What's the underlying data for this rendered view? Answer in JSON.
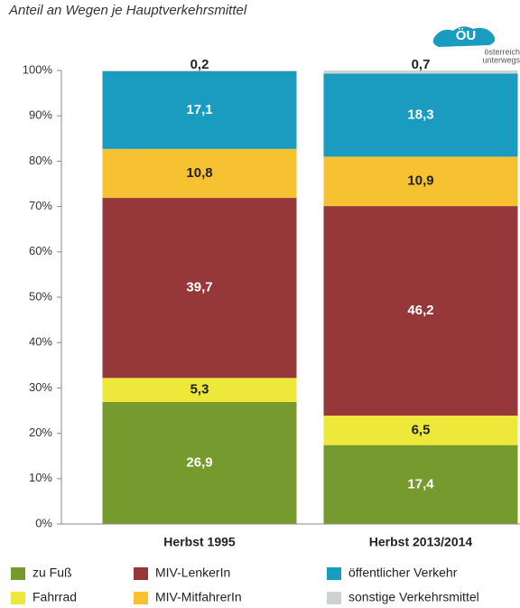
{
  "logo": {
    "mark": "ÖU",
    "line1": "österreich",
    "line2": "unterwegs"
  },
  "chart_data": {
    "type": "stacked_bar",
    "subtitle": "Anteil an Wegen je Hauptverkehrsmittel",
    "categories": [
      "Herbst 1995",
      "Herbst 2013/2014"
    ],
    "series": [
      {
        "name": "zu Fuß",
        "color": "#779a2e",
        "values": [
          26.9,
          17.4
        ],
        "value_labels": [
          "26,9",
          "17,4"
        ]
      },
      {
        "name": "Fahrrad",
        "color": "#ede83a",
        "values": [
          5.3,
          6.5
        ],
        "value_labels": [
          "5,3",
          "6,5"
        ]
      },
      {
        "name": "MIV-LenkerIn",
        "color": "#96383a",
        "values": [
          39.7,
          46.2
        ],
        "value_labels": [
          "39,7",
          "46,2"
        ]
      },
      {
        "name": "MIV-MitfahrerIn",
        "color": "#f6c231",
        "values": [
          10.8,
          10.9
        ],
        "value_labels": [
          "10,8",
          "10,9"
        ]
      },
      {
        "name": "öffentlicher Verkehr",
        "color": "#1a9bc0",
        "values": [
          17.1,
          18.3
        ],
        "value_labels": [
          "17,1",
          "18,3"
        ]
      },
      {
        "name": "sonstige Verkehrsmittel",
        "color": "#cfd2d3",
        "values": [
          0.2,
          0.7
        ],
        "value_labels": [
          "0,2",
          "0,7"
        ]
      }
    ],
    "ylim": [
      0,
      100
    ],
    "yticks": [
      {
        "value": 0,
        "label": "0%"
      },
      {
        "value": 10,
        "label": "10%"
      },
      {
        "value": 20,
        "label": "20%"
      },
      {
        "value": 30,
        "label": "30%"
      },
      {
        "value": 40,
        "label": "40%"
      },
      {
        "value": 50,
        "label": "50%"
      },
      {
        "value": 60,
        "label": "60%"
      },
      {
        "value": 70,
        "label": "70%"
      },
      {
        "value": 80,
        "label": "80%"
      },
      {
        "value": 90,
        "label": "90%"
      },
      {
        "value": 100,
        "label": "100%"
      }
    ]
  }
}
